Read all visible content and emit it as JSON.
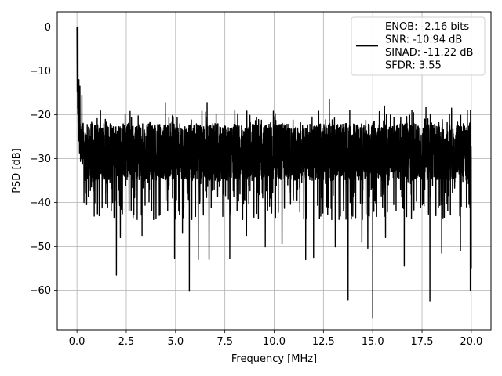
{
  "chart_data": {
    "type": "line",
    "xlabel": "Frequency [MHz]",
    "ylabel": "PSD [dB]",
    "xlim": [
      -1.0,
      21.0
    ],
    "ylim": [
      -69.0,
      3.5
    ],
    "xticks": [
      0.0,
      2.5,
      5.0,
      7.5,
      10.0,
      12.5,
      15.0,
      17.5,
      20.0
    ],
    "xtick_labels": [
      "0.0",
      "2.5",
      "5.0",
      "7.5",
      "10.0",
      "12.5",
      "15.0",
      "17.5",
      "20.0"
    ],
    "yticks": [
      0,
      -10,
      -20,
      -30,
      -40,
      -50,
      -60
    ],
    "ytick_labels": [
      "0",
      "−10",
      "−20",
      "−30",
      "−40",
      "−50",
      "−60"
    ],
    "grid": true,
    "legend_position": "top-right",
    "series": [
      {
        "color": "#000000",
        "summary": {
          "x_range": [
            0.0,
            20.0
          ],
          "peak": [
            0.0,
            0.0
          ],
          "typical_band": [
            -35,
            -22
          ],
          "notable_dips": [
            [
              2.0,
              -56.5
            ],
            [
              2.2,
              -48
            ],
            [
              3.3,
              -47.5
            ],
            [
              4.95,
              -52.7
            ],
            [
              5.35,
              -47
            ],
            [
              5.7,
              -60.2
            ],
            [
              6.15,
              -53
            ],
            [
              6.7,
              -53
            ],
            [
              7.75,
              -52.7
            ],
            [
              8.6,
              -47.5
            ],
            [
              9.55,
              -50
            ],
            [
              10.4,
              -49.5
            ],
            [
              11.6,
              -53
            ],
            [
              12.0,
              -52.5
            ],
            [
              13.1,
              -50
            ],
            [
              13.75,
              -62.2
            ],
            [
              14.45,
              -49
            ],
            [
              14.75,
              -50.5
            ],
            [
              15.0,
              -66.3
            ],
            [
              15.65,
              -48
            ],
            [
              16.6,
              -54.5
            ],
            [
              17.9,
              -62.4
            ],
            [
              18.5,
              -51.5
            ],
            [
              19.45,
              -51
            ],
            [
              19.95,
              -60
            ],
            [
              20.0,
              -55
            ]
          ],
          "notable_peaks": [
            [
              0.05,
              0.0
            ],
            [
              0.1,
              -12
            ],
            [
              0.15,
              -13.5
            ],
            [
              0.25,
              -15.5
            ],
            [
              2.2,
              -14.1
            ],
            [
              4.5,
              -17.2
            ],
            [
              6.6,
              -17.2
            ],
            [
              12.8,
              -16.5
            ],
            [
              15.6,
              -18.0
            ],
            [
              17.7,
              -18.2
            ],
            [
              19.0,
              -18.5
            ],
            [
              20.0,
              -21.6
            ]
          ]
        }
      }
    ],
    "legend": {
      "lines": [
        "ENOB: -2.16 bits",
        "SNR: -10.94 dB",
        "SINAD: -11.22 dB",
        "SFDR: 3.55"
      ]
    }
  }
}
